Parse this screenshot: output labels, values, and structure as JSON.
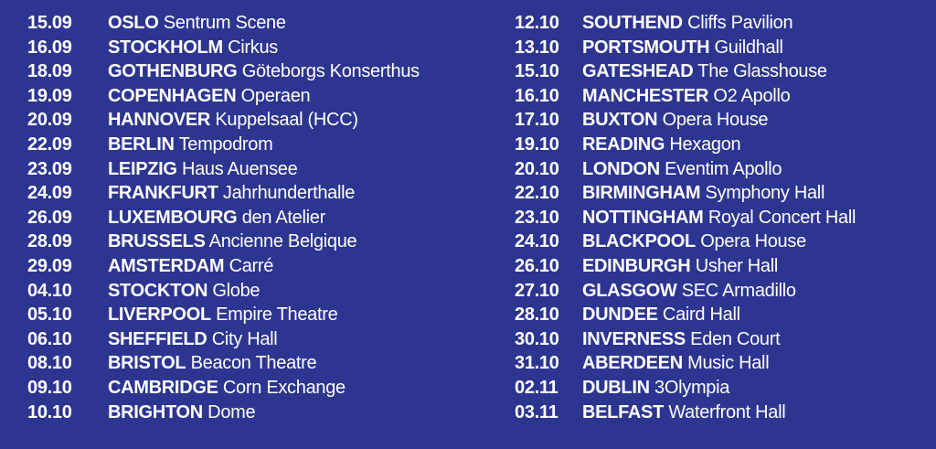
{
  "colors": {
    "background": "#2d3590",
    "text": "#ffffff"
  },
  "columns": [
    [
      {
        "date": "15.09",
        "city": "OSLO",
        "venue": "Sentrum Scene"
      },
      {
        "date": "16.09",
        "city": "STOCKHOLM",
        "venue": "Cirkus"
      },
      {
        "date": "18.09",
        "city": "GOTHENBURG",
        "venue": "Göteborgs Konserthus"
      },
      {
        "date": "19.09",
        "city": "COPENHAGEN",
        "venue": "Operaen"
      },
      {
        "date": "20.09",
        "city": "HANNOVER",
        "venue": "Kuppelsaal (HCC)"
      },
      {
        "date": "22.09",
        "city": "BERLIN",
        "venue": "Tempodrom"
      },
      {
        "date": "23.09",
        "city": "LEIPZIG",
        "venue": "Haus Auensee"
      },
      {
        "date": "24.09",
        "city": "FRANKFURT",
        "venue": "Jahrhunderthalle"
      },
      {
        "date": "26.09",
        "city": "LUXEMBOURG",
        "venue": "den Atelier"
      },
      {
        "date": "28.09",
        "city": "BRUSSELS",
        "venue": "Ancienne Belgique"
      },
      {
        "date": "29.09",
        "city": "AMSTERDAM",
        "venue": "Carré"
      },
      {
        "date": "04.10",
        "city": "STOCKTON",
        "venue": "Globe"
      },
      {
        "date": "05.10",
        "city": "LIVERPOOL",
        "venue": "Empire Theatre"
      },
      {
        "date": "06.10",
        "city": "SHEFFIELD",
        "venue": "City Hall"
      },
      {
        "date": "08.10",
        "city": "BRISTOL",
        "venue": "Beacon Theatre"
      },
      {
        "date": "09.10",
        "city": "CAMBRIDGE",
        "venue": "Corn Exchange"
      },
      {
        "date": "10.10",
        "city": "BRIGHTON",
        "venue": "Dome"
      }
    ],
    [
      {
        "date": "12.10",
        "city": "SOUTHEND",
        "venue": "Cliffs Pavilion"
      },
      {
        "date": "13.10",
        "city": "PORTSMOUTH",
        "venue": "Guildhall"
      },
      {
        "date": "15.10",
        "city": "GATESHEAD",
        "venue": "The Glasshouse"
      },
      {
        "date": "16.10",
        "city": "MANCHESTER",
        "venue": "O2 Apollo"
      },
      {
        "date": "17.10",
        "city": "BUXTON",
        "venue": "Opera House"
      },
      {
        "date": "19.10",
        "city": "READING",
        "venue": "Hexagon"
      },
      {
        "date": "20.10",
        "city": "LONDON",
        "venue": "Eventim Apollo"
      },
      {
        "date": "22.10",
        "city": "BIRMINGHAM",
        "venue": "Symphony Hall"
      },
      {
        "date": "23.10",
        "city": "NOTTINGHAM",
        "venue": "Royal Concert Hall"
      },
      {
        "date": "24.10",
        "city": "BLACKPOOL",
        "venue": "Opera House"
      },
      {
        "date": "26.10",
        "city": "EDINBURGH",
        "venue": "Usher Hall"
      },
      {
        "date": "27.10",
        "city": "GLASGOW",
        "venue": "SEC Armadillo"
      },
      {
        "date": "28.10",
        "city": "DUNDEE",
        "venue": "Caird Hall"
      },
      {
        "date": "30.10",
        "city": "INVERNESS",
        "venue": "Eden Court"
      },
      {
        "date": "31.10",
        "city": "ABERDEEN",
        "venue": "Music Hall"
      },
      {
        "date": "02.11",
        "city": "DUBLIN",
        "venue": "3Olympia"
      },
      {
        "date": "03.11",
        "city": "BELFAST",
        "venue": "Waterfront Hall"
      }
    ]
  ]
}
